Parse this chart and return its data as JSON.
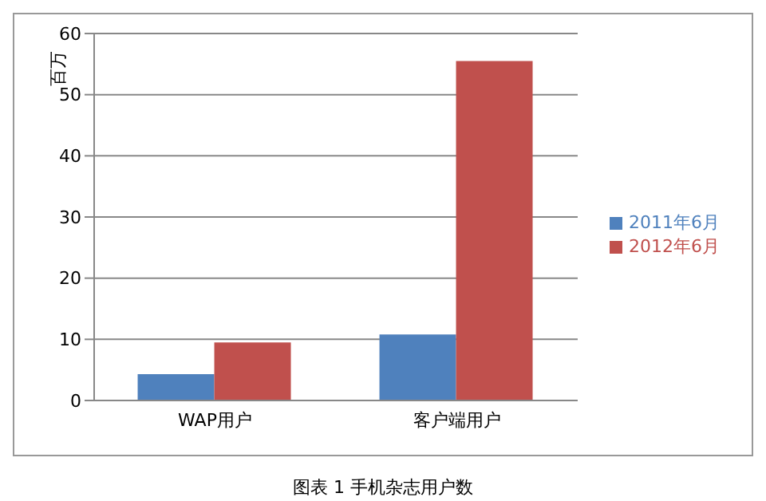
{
  "chart_data": {
    "type": "bar",
    "title": "图表 1 手机杂志用户数",
    "ylabel": "百万",
    "categories": [
      "WAP用户",
      "客户端用户"
    ],
    "series": [
      {
        "name": "2011年6月",
        "color": "#4f81bd",
        "values": [
          4.3,
          10.8
        ]
      },
      {
        "name": "2012年6月",
        "color": "#c0504d",
        "values": [
          9.5,
          55.5
        ]
      }
    ],
    "ylim": [
      0,
      60
    ],
    "yticks": [
      0,
      10,
      20,
      30,
      40,
      50,
      60
    ],
    "grid": "y",
    "legend": "right"
  }
}
